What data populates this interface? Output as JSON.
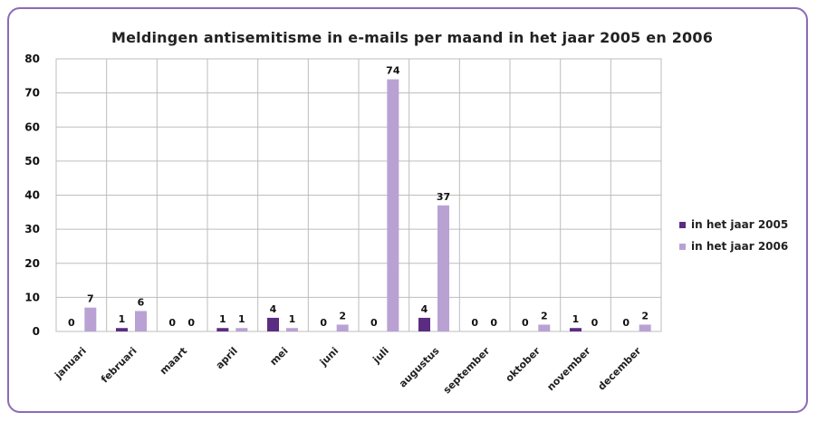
{
  "chart_data": {
    "type": "bar",
    "title": "Meldingen antisemitisme in e-mails per maand in het jaar 2005 en 2006",
    "categories": [
      "januari",
      "februari",
      "maart",
      "april",
      "mei",
      "juni",
      "juli",
      "augustus",
      "september",
      "oktober",
      "november",
      "december"
    ],
    "series": [
      {
        "name": "in het jaar 2005",
        "color": "#5b2d82",
        "values": [
          0,
          1,
          0,
          1,
          4,
          0,
          0,
          4,
          0,
          0,
          1,
          0
        ]
      },
      {
        "name": "in het jaar 2006",
        "color": "#b9a2d3",
        "values": [
          7,
          6,
          0,
          1,
          1,
          2,
          74,
          37,
          0,
          2,
          0,
          2
        ]
      }
    ],
    "ylim": [
      0,
      80
    ],
    "yticks": [
      0,
      10,
      20,
      30,
      40,
      50,
      60,
      70,
      80
    ],
    "grid": true,
    "legend": "right",
    "xlabel": "",
    "ylabel": ""
  }
}
